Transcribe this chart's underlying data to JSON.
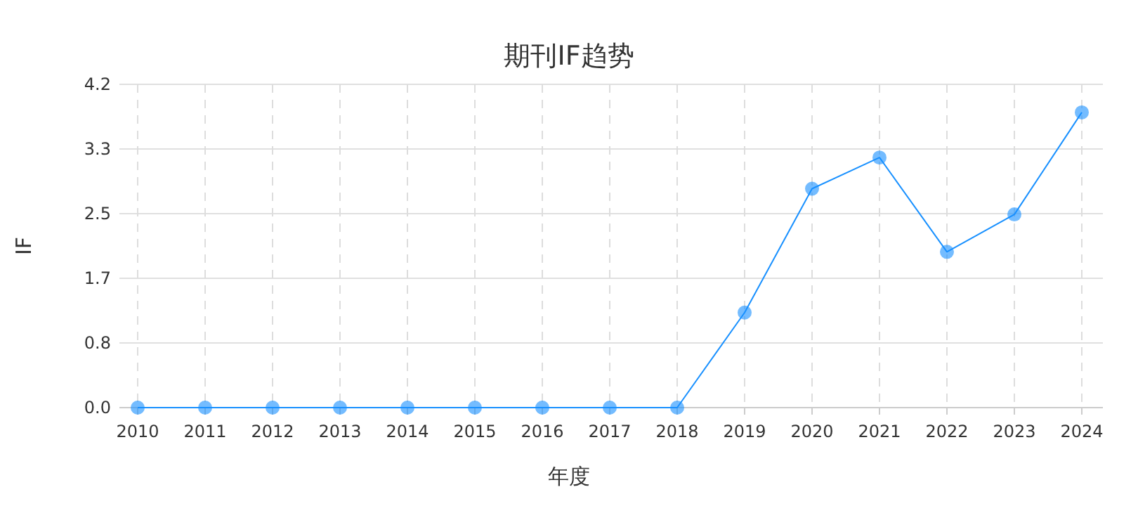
{
  "chart_data": {
    "type": "line",
    "title": "期刊IF趋势",
    "xlabel": "年度",
    "ylabel": "IF",
    "categories": [
      "2010",
      "2011",
      "2012",
      "2013",
      "2014",
      "2015",
      "2016",
      "2017",
      "2018",
      "2019",
      "2020",
      "2021",
      "2022",
      "2023",
      "2024"
    ],
    "series": [
      {
        "color": "#1890ff",
        "values": [
          0,
          0,
          0,
          0,
          0,
          0,
          0,
          0,
          0,
          1.22,
          2.81,
          3.21,
          2.0,
          2.48,
          3.79
        ]
      }
    ],
    "ylim": [
      0,
      4.15
    ],
    "yticks": [
      {
        "value": 0,
        "label": "0.0"
      },
      {
        "value": 0.83,
        "label": "0.8"
      },
      {
        "value": 1.66,
        "label": "1.7"
      },
      {
        "value": 2.49,
        "label": "2.5"
      },
      {
        "value": 3.32,
        "label": "3.3"
      },
      {
        "value": 4.15,
        "label": "4.2"
      }
    ],
    "grid": true,
    "marker": "circle",
    "line_style": "solid"
  }
}
